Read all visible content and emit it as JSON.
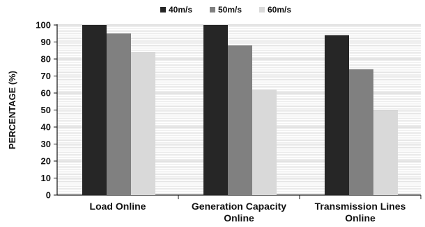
{
  "chart_data": {
    "type": "bar",
    "title": "",
    "xlabel": "",
    "ylabel": "PERCENTAGE (%)",
    "ylim": [
      0,
      100
    ],
    "ytick_step": 10,
    "grid": true,
    "legend_position": "top-center",
    "categories": [
      [
        "Load Online"
      ],
      [
        "Generation Capacity",
        "Online"
      ],
      [
        "Transmission Lines",
        "Online"
      ]
    ],
    "series": [
      {
        "name": "40m/s",
        "color": "#262626",
        "values": [
          100,
          100,
          94
        ]
      },
      {
        "name": "50m/s",
        "color": "#808080",
        "values": [
          95,
          88,
          74
        ]
      },
      {
        "name": "60m/s",
        "color": "#d9d9d9",
        "values": [
          84,
          62,
          50
        ]
      }
    ]
  }
}
